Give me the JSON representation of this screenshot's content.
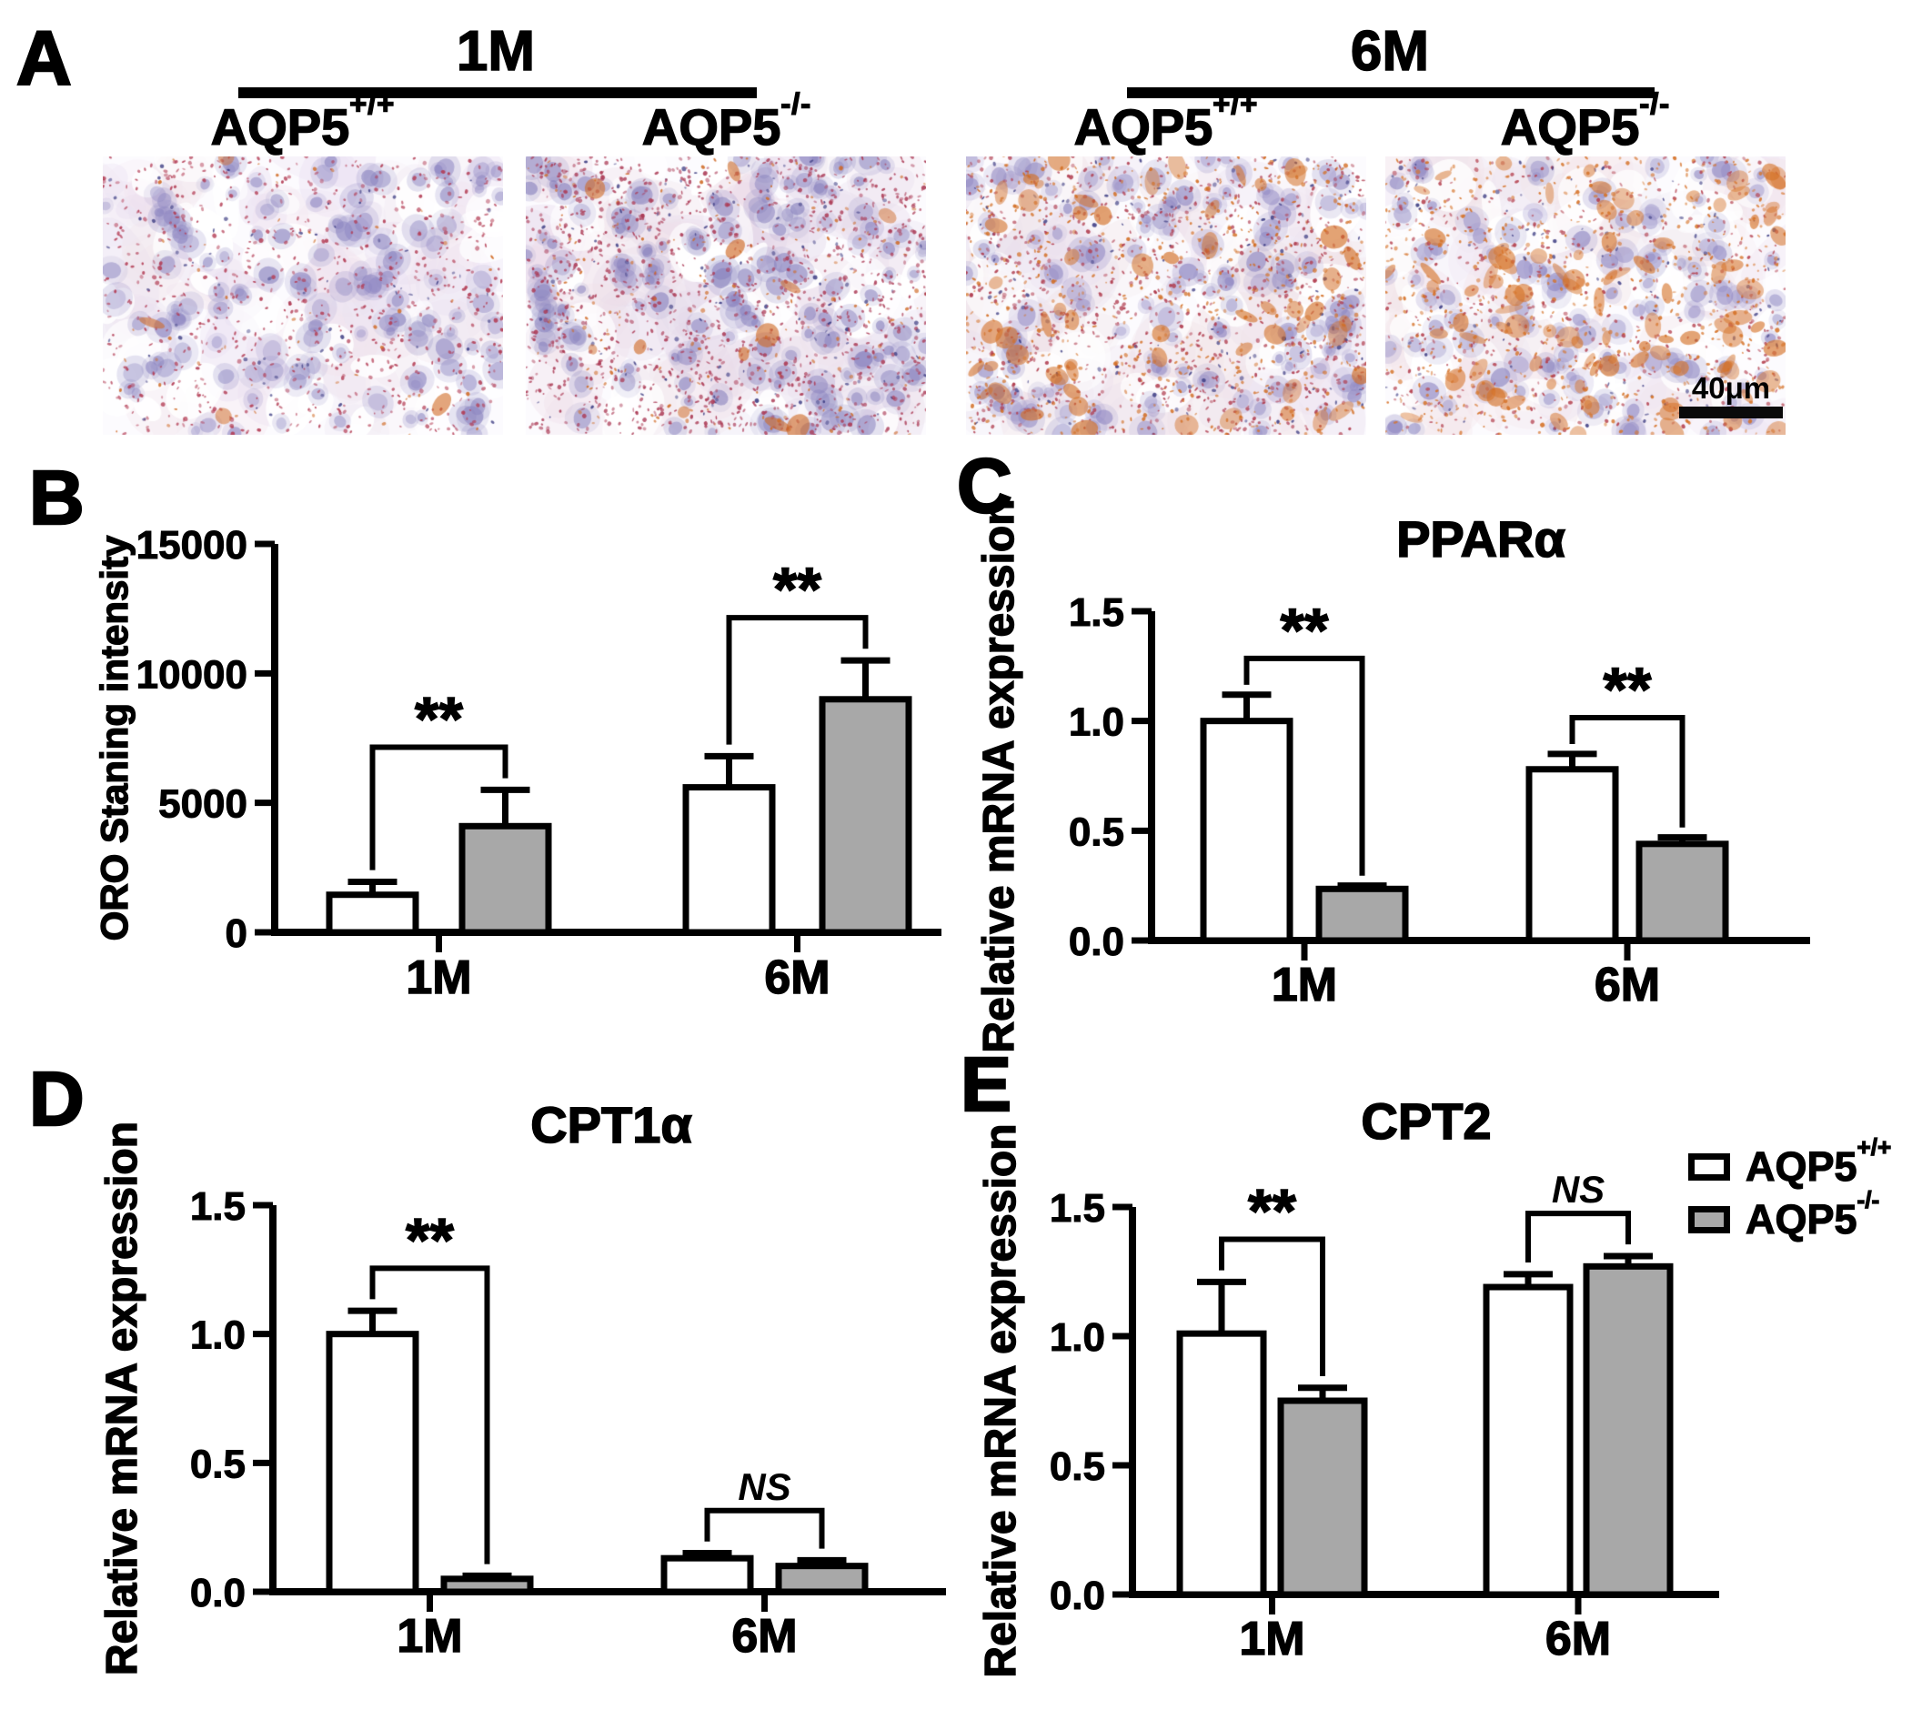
{
  "panel_a": {
    "label": "A",
    "groups": [
      {
        "label": "1M",
        "conditions": [
          {
            "base": "AQP5",
            "sup": "+/+"
          },
          {
            "base": "AQP5",
            "sup": "-/-"
          }
        ]
      },
      {
        "label": "6M",
        "conditions": [
          {
            "base": "AQP5",
            "sup": "+/+"
          },
          {
            "base": "AQP5",
            "sup": "-/-"
          }
        ]
      }
    ],
    "scale_bar_label": "40μm",
    "images": [
      {
        "label": "ORO staining 1M AQP5+/+",
        "stain": {
          "tissue": "#e8def0",
          "tissue2": "#f2e5ed",
          "nucleus": "#8b84c0",
          "dot": "#b23a52",
          "orange": "#d06a24",
          "nuclei": 125,
          "dots": 900,
          "orange_ratio": 0.06,
          "blobs": 4,
          "gaps": 34
        }
      },
      {
        "label": "ORO staining 1M AQP5-/-",
        "stain": {
          "tissue": "#e3d6e9",
          "tissue2": "#efe0e9",
          "nucleus": "#8780bd",
          "dot": "#ab3a55",
          "orange": "#cf6a26",
          "nuclei": 150,
          "dots": 1600,
          "orange_ratio": 0.12,
          "blobs": 12,
          "gaps": 28
        }
      },
      {
        "label": "ORO staining 6M AQP5+/+",
        "stain": {
          "tissue": "#e9dfee",
          "tissue2": "#f1e2e6",
          "nucleus": "#8d85c1",
          "dot": "#b03c4e",
          "orange": "#d26d22",
          "nuclei": 140,
          "dots": 1700,
          "orange_ratio": 0.38,
          "blobs": 60,
          "gaps": 30
        }
      },
      {
        "label": "ORO staining 6M AQP5-/-",
        "stain": {
          "tissue": "#ece2f0",
          "tissue2": "#f3e4e8",
          "nucleus": "#8d86c2",
          "dot": "#b4404e",
          "orange": "#d57126",
          "nuclei": 115,
          "dots": 1250,
          "orange_ratio": 0.5,
          "blobs": 100,
          "gaps": 42
        }
      }
    ]
  },
  "chart_data": [
    {
      "panel_label": "B",
      "type": "bar",
      "title": "",
      "ylabel": "ORO Staning intensity",
      "categories": [
        "1M",
        "6M"
      ],
      "ylim": [
        0,
        15000
      ],
      "yticks": [
        0,
        5000,
        10000,
        15000
      ],
      "ytick_labels": [
        "0",
        "5000",
        "10000",
        "15000"
      ],
      "series": [
        {
          "name": "AQP5+/+",
          "fill": "#ffffff",
          "values": [
            1450,
            5600
          ],
          "errors": [
            500,
            1200
          ]
        },
        {
          "name": "AQP5-/-",
          "fill": "#a8a8a8",
          "values": [
            4100,
            9000
          ],
          "errors": [
            1400,
            1500
          ]
        }
      ],
      "significance": [
        {
          "category": "1M",
          "label": "**"
        },
        {
          "category": "6M",
          "label": "**"
        }
      ],
      "grid": false,
      "legend_position": "none"
    },
    {
      "panel_label": "C",
      "type": "bar",
      "title": "PPARα",
      "ylabel": "Relative mRNA expression",
      "categories": [
        "1M",
        "6M"
      ],
      "ylim": [
        0,
        1.5
      ],
      "yticks": [
        0,
        0.5,
        1.0,
        1.5
      ],
      "ytick_labels": [
        "0.0",
        "0.5",
        "1.0",
        "1.5"
      ],
      "series": [
        {
          "name": "AQP5+/+",
          "fill": "#ffffff",
          "values": [
            1.0,
            0.78
          ],
          "errors": [
            0.12,
            0.07
          ]
        },
        {
          "name": "AQP5-/-",
          "fill": "#a8a8a8",
          "values": [
            0.235,
            0.44
          ],
          "errors": [
            0.015,
            0.03
          ]
        }
      ],
      "significance": [
        {
          "category": "1M",
          "label": "**"
        },
        {
          "category": "6M",
          "label": "**"
        }
      ],
      "grid": false,
      "legend_position": "none"
    },
    {
      "panel_label": "D",
      "type": "bar",
      "title": "CPT1α",
      "ylabel": "Relative mRNA expression",
      "categories": [
        "1M",
        "6M"
      ],
      "ylim": [
        0,
        1.5
      ],
      "yticks": [
        0,
        0.5,
        1.0,
        1.5
      ],
      "ytick_labels": [
        "0.0",
        "0.5",
        "1.0",
        "1.5"
      ],
      "series": [
        {
          "name": "AQP5+/+",
          "fill": "#ffffff",
          "values": [
            1.0,
            0.13
          ],
          "errors": [
            0.09,
            0.02
          ]
        },
        {
          "name": "AQP5-/-",
          "fill": "#a8a8a8",
          "values": [
            0.05,
            0.1
          ],
          "errors": [
            0.012,
            0.022
          ]
        }
      ],
      "significance": [
        {
          "category": "1M",
          "label": "**"
        },
        {
          "category": "6M",
          "label": "NS"
        }
      ],
      "grid": false,
      "legend_position": "none"
    },
    {
      "panel_label": "E",
      "type": "bar",
      "title": "CPT2",
      "ylabel": "Relative mRNA expression",
      "categories": [
        "1M",
        "6M"
      ],
      "ylim": [
        0,
        1.5
      ],
      "yticks": [
        0,
        0.5,
        1.0,
        1.5
      ],
      "ytick_labels": [
        "0.0",
        "0.5",
        "1.0",
        "1.5"
      ],
      "series": [
        {
          "name": "AQP5+/+",
          "fill": "#ffffff",
          "values": [
            1.01,
            1.19
          ],
          "errors": [
            0.2,
            0.05
          ]
        },
        {
          "name": "AQP5-/-",
          "fill": "#a8a8a8",
          "values": [
            0.75,
            1.27
          ],
          "errors": [
            0.05,
            0.04
          ]
        }
      ],
      "significance": [
        {
          "category": "1M",
          "label": "**"
        },
        {
          "category": "6M",
          "label": "NS"
        }
      ],
      "grid": false,
      "legend_position": "top-right"
    }
  ],
  "legend": {
    "entries": [
      {
        "base": "AQP5",
        "sup": "+/+",
        "fill": "#ffffff"
      },
      {
        "base": "AQP5",
        "sup": "-/-",
        "fill": "#a8a8a8"
      }
    ]
  }
}
